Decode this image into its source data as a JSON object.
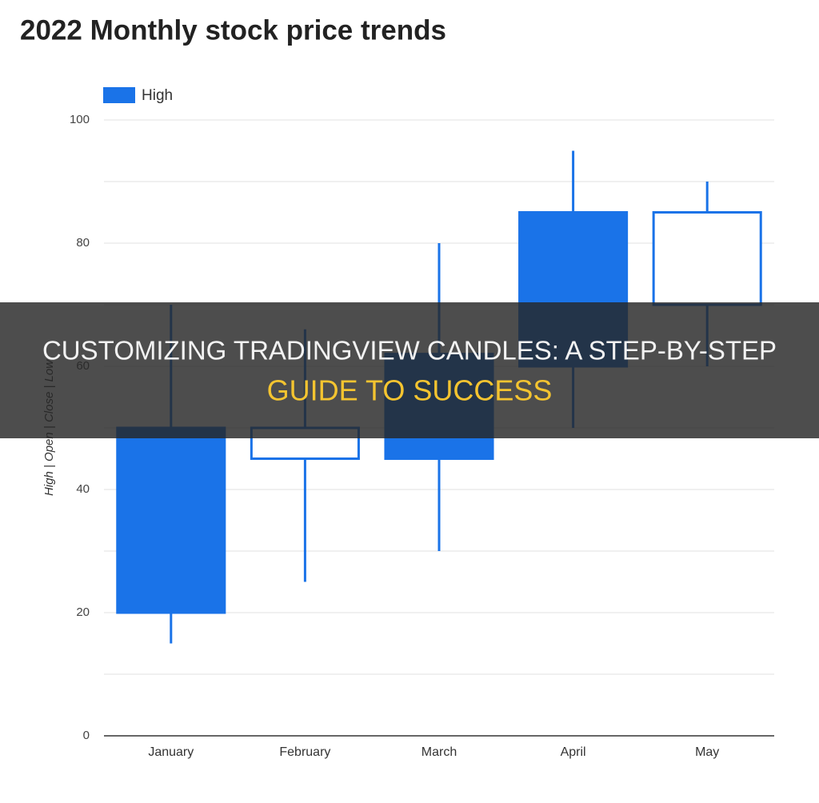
{
  "chart_data": {
    "type": "candlestick",
    "title": "2022 Monthly stock price trends",
    "y_label": "High | Open | Close | Low",
    "categories": [
      "January",
      "February",
      "March",
      "April",
      "May"
    ],
    "series": [
      {
        "name": "High",
        "color": "#1a73e8",
        "open": [
          50,
          45,
          62,
          85,
          70
        ],
        "close": [
          20,
          50,
          45,
          60,
          85
        ],
        "high": [
          70,
          66,
          80,
          95,
          90
        ],
        "low": [
          15,
          25,
          30,
          50,
          60
        ]
      }
    ],
    "ylim": [
      0,
      100
    ],
    "yticks": [
      0,
      20,
      40,
      60,
      80,
      100
    ],
    "minor_gridlines": [
      10,
      30,
      50,
      70,
      90
    ],
    "grid": true,
    "legend": "top-left"
  },
  "banner": {
    "title": "CUSTOMIZING TRADINGVIEW CANDLES: A STEP-BY-STEP",
    "highlight": "GUIDE TO SUCCESS"
  }
}
